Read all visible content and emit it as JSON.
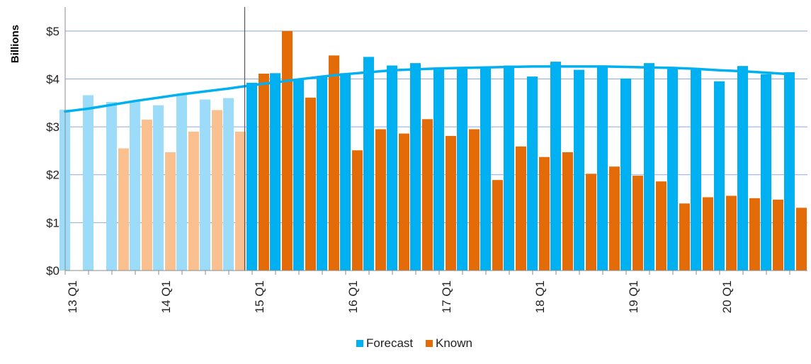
{
  "chart_data": {
    "type": "bar",
    "ylabel": "Billions",
    "ylim": [
      0,
      5.5
    ],
    "y_ticks": [
      "$0",
      "$1",
      "$2",
      "$3",
      "$4",
      "$5"
    ],
    "x_tick_labels": [
      "13 Q1",
      "14 Q1",
      "15 Q1",
      "16 Q1",
      "17 Q1",
      "18 Q1",
      "19 Q1",
      "20 Q1"
    ],
    "grid": "horizontal",
    "legend_position": "bottom-center",
    "divider_after_period": 8,
    "colors": {
      "forecast": "#00B0F0",
      "forecast_faded": "#9DDCF9",
      "known": "#E36C09",
      "known_faded": "#FAC090",
      "trend": "#00B0F0",
      "grid": "#8EA9DB"
    },
    "series": [
      {
        "name": "Forecast",
        "values": [
          3.36,
          3.66,
          3.52,
          3.53,
          3.45,
          3.68,
          3.57,
          3.6,
          3.92,
          4.12,
          3.98,
          4.05,
          4.12,
          4.46,
          4.28,
          4.33,
          4.2,
          4.22,
          4.22,
          4.28,
          4.05,
          4.36,
          4.19,
          4.27,
          4.01,
          4.33,
          4.22,
          4.19,
          3.95,
          4.27,
          4.1,
          4.14
        ]
      },
      {
        "name": "Known",
        "values": [
          null,
          null,
          2.55,
          3.15,
          2.47,
          2.9,
          3.35,
          2.9,
          4.11,
          5.0,
          3.61,
          4.49,
          2.51,
          2.95,
          2.86,
          3.16,
          2.81,
          2.95,
          1.89,
          2.59,
          2.37,
          2.47,
          2.02,
          2.17,
          1.98,
          1.86,
          1.4,
          1.53,
          1.56,
          1.51,
          1.48,
          1.31
        ]
      }
    ],
    "trend": [
      3.32,
      3.38,
      3.46,
      3.54,
      3.61,
      3.68,
      3.74,
      3.8,
      3.87,
      3.93,
      3.99,
      4.05,
      4.1,
      4.14,
      4.18,
      4.2,
      4.22,
      4.23,
      4.24,
      4.25,
      4.26,
      4.26,
      4.26,
      4.26,
      4.25,
      4.24,
      4.23,
      4.21,
      4.18,
      4.16,
      4.13,
      4.1
    ]
  }
}
